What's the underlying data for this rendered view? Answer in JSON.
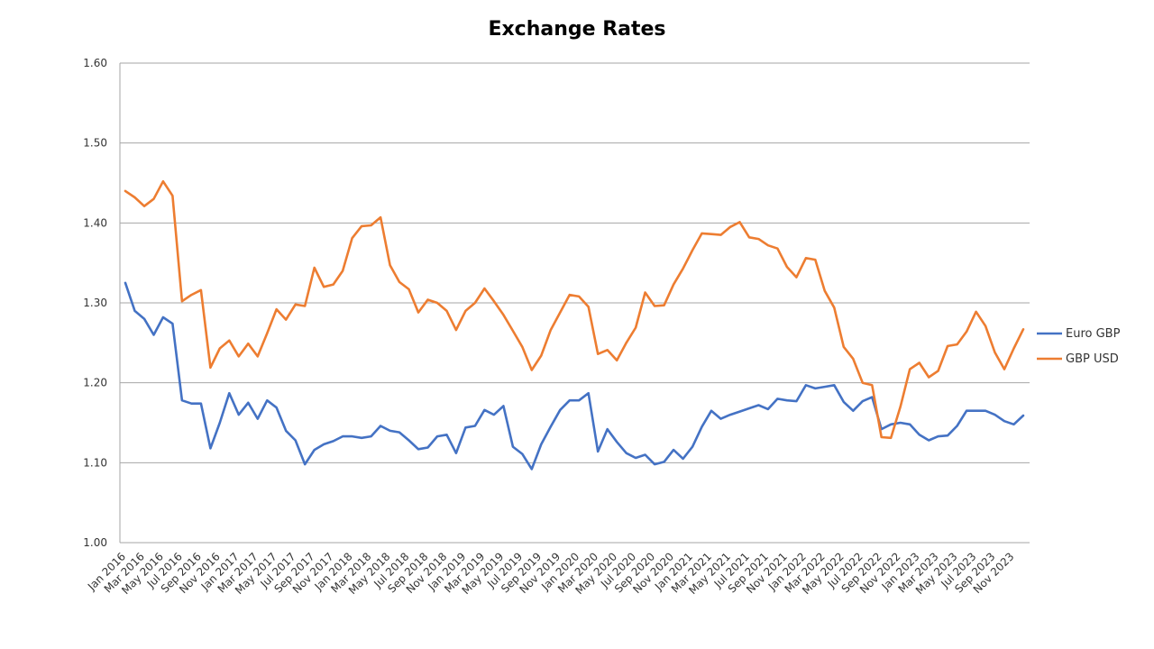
{
  "chart_data": {
    "type": "line",
    "title": "Exchange Rates",
    "xlabel": "",
    "ylabel": "",
    "ylim": [
      1.0,
      1.6
    ],
    "yticks": [
      "1.00",
      "1.10",
      "1.20",
      "1.30",
      "1.40",
      "1.50",
      "1.60"
    ],
    "grid": true,
    "legend": "right",
    "x": [
      "Jan 2016",
      "Feb 2016",
      "Mar 2016",
      "Apr 2016",
      "May 2016",
      "Jun 2016",
      "Jul 2016",
      "Aug 2016",
      "Sep 2016",
      "Oct 2016",
      "Nov 2016",
      "Dec 2016",
      "Jan 2017",
      "Feb 2017",
      "Mar 2017",
      "Apr 2017",
      "May 2017",
      "Jun 2017",
      "Jul 2017",
      "Aug 2017",
      "Sep 2017",
      "Oct 2017",
      "Nov 2017",
      "Dec 2017",
      "Jan 2018",
      "Feb 2018",
      "Mar 2018",
      "Apr 2018",
      "May 2018",
      "Jun 2018",
      "Jul 2018",
      "Aug 2018",
      "Sep 2018",
      "Oct 2018",
      "Nov 2018",
      "Dec 2018",
      "Jan 2019",
      "Feb 2019",
      "Mar 2019",
      "Apr 2019",
      "May 2019",
      "Jun 2019",
      "Jul 2019",
      "Aug 2019",
      "Sep 2019",
      "Oct 2019",
      "Nov 2019",
      "Dec 2019",
      "Jan 2020",
      "Feb 2020",
      "Mar 2020",
      "Apr 2020",
      "May 2020",
      "Jun 2020",
      "Jul 2020",
      "Aug 2020",
      "Sep 2020",
      "Oct 2020",
      "Nov 2020",
      "Dec 2020",
      "Jan 2021",
      "Feb 2021",
      "Mar 2021",
      "Apr 2021",
      "May 2021",
      "Jun 2021",
      "Jul 2021",
      "Aug 2021",
      "Sep 2021",
      "Oct 2021",
      "Nov 2021",
      "Dec 2021",
      "Jan 2022",
      "Feb 2022",
      "Mar 2022",
      "Apr 2022",
      "May 2022",
      "Jun 2022",
      "Jul 2022",
      "Aug 2022",
      "Sep 2022",
      "Oct 2022",
      "Nov 2022",
      "Dec 2022",
      "Jan 2023",
      "Feb 2023",
      "Mar 2023",
      "Apr 2023",
      "May 2023",
      "Jun 2023",
      "Jul 2023",
      "Aug 2023",
      "Sep 2023",
      "Oct 2023",
      "Nov 2023",
      "Dec 2023"
    ],
    "xtick_labels": [
      "Jan 2016",
      "Mar 2016",
      "May 2016",
      "Jul 2016",
      "Sep 2016",
      "Nov 2016",
      "Jan 2017",
      "Mar 2017",
      "May 2017",
      "Jul 2017",
      "Sep 2017",
      "Nov 2017",
      "Jan 2018",
      "Mar 2018",
      "May 2018",
      "Jul 2018",
      "Sep 2018",
      "Nov 2018",
      "Jan 2019",
      "Mar 2019",
      "May 2019",
      "Jul 2019",
      "Sep 2019",
      "Nov 2019",
      "Jan 2020",
      "Mar 2020",
      "May 2020",
      "Jul 2020",
      "Sep 2020",
      "Nov 2020",
      "Jan 2021",
      "Mar 2021",
      "May 2021",
      "Jul 2021",
      "Sep 2021",
      "Nov 2021",
      "Jan 2022",
      "Mar 2022",
      "May 2022",
      "Jul 2022",
      "Sep 2022",
      "Nov 2022",
      "Jan 2023",
      "Mar 2023",
      "May 2023",
      "Jul 2023",
      "Sep 2023",
      "Nov 2023"
    ],
    "series": [
      {
        "name": "Euro GBP",
        "color": "#4472C4",
        "values": [
          1.325,
          1.29,
          1.28,
          1.26,
          1.282,
          1.274,
          1.178,
          1.174,
          1.174,
          1.118,
          1.15,
          1.187,
          1.16,
          1.175,
          1.155,
          1.178,
          1.169,
          1.14,
          1.128,
          1.098,
          1.116,
          1.123,
          1.127,
          1.133,
          1.133,
          1.131,
          1.133,
          1.146,
          1.14,
          1.138,
          1.128,
          1.117,
          1.119,
          1.133,
          1.135,
          1.112,
          1.144,
          1.146,
          1.166,
          1.16,
          1.171,
          1.12,
          1.111,
          1.092,
          1.123,
          1.145,
          1.166,
          1.178,
          1.178,
          1.187,
          1.114,
          1.142,
          1.126,
          1.112,
          1.106,
          1.11,
          1.098,
          1.101,
          1.116,
          1.105,
          1.12,
          1.145,
          1.165,
          1.155,
          1.16,
          1.164,
          1.168,
          1.172,
          1.167,
          1.18,
          1.178,
          1.177,
          1.197,
          1.193,
          1.195,
          1.197,
          1.176,
          1.165,
          1.177,
          1.182,
          1.142,
          1.148,
          1.15,
          1.148,
          1.135,
          1.128,
          1.133,
          1.134,
          1.146,
          1.165,
          1.165,
          1.165,
          1.16,
          1.152,
          1.148,
          1.159
        ]
      },
      {
        "name": "GBP USD",
        "color": "#ED7D31",
        "values": [
          1.44,
          1.432,
          1.421,
          1.43,
          1.452,
          1.434,
          1.302,
          1.31,
          1.316,
          1.219,
          1.243,
          1.253,
          1.233,
          1.249,
          1.233,
          1.262,
          1.292,
          1.279,
          1.298,
          1.296,
          1.344,
          1.32,
          1.323,
          1.34,
          1.381,
          1.396,
          1.397,
          1.407,
          1.347,
          1.326,
          1.317,
          1.288,
          1.304,
          1.3,
          1.29,
          1.266,
          1.29,
          1.3,
          1.318,
          1.302,
          1.285,
          1.265,
          1.245,
          1.216,
          1.234,
          1.266,
          1.288,
          1.31,
          1.308,
          1.295,
          1.236,
          1.241,
          1.228,
          1.25,
          1.269,
          1.313,
          1.296,
          1.297,
          1.323,
          1.343,
          1.366,
          1.387,
          1.386,
          1.385,
          1.395,
          1.401,
          1.382,
          1.38,
          1.372,
          1.368,
          1.345,
          1.332,
          1.356,
          1.354,
          1.315,
          1.294,
          1.245,
          1.23,
          1.2,
          1.197,
          1.132,
          1.131,
          1.17,
          1.217,
          1.225,
          1.207,
          1.215,
          1.246,
          1.248,
          1.264,
          1.289,
          1.271,
          1.238,
          1.217,
          1.243,
          1.267
        ]
      }
    ]
  }
}
